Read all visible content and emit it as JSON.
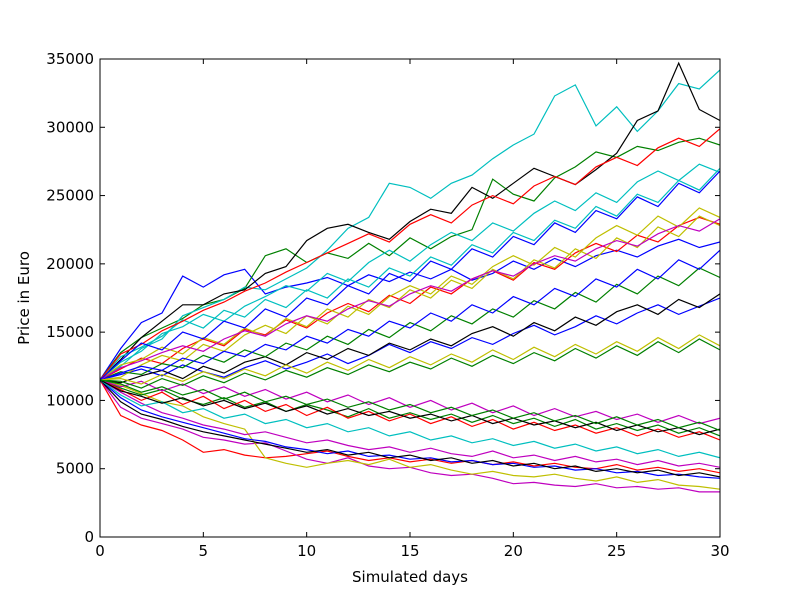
{
  "chart_data": {
    "type": "line",
    "title": "",
    "xlabel": "Simulated days",
    "ylabel": "Price in Euro",
    "xlim": [
      0,
      30
    ],
    "ylim": [
      0,
      35000
    ],
    "x_ticks": [
      0,
      5,
      10,
      15,
      20,
      25,
      30
    ],
    "y_ticks": [
      0,
      5000,
      10000,
      15000,
      20000,
      25000,
      30000,
      35000
    ],
    "x_tick_labels": [
      "0",
      "5",
      "10",
      "15",
      "20",
      "25",
      "30"
    ],
    "y_tick_labels": [
      "0",
      "5000",
      "10000",
      "15000",
      "20000",
      "25000",
      "30000",
      "35000"
    ],
    "grid": false,
    "legend": "none",
    "colors": [
      "#0000ff",
      "#008000",
      "#ff0000",
      "#00bfbf",
      "#bf00bf",
      "#bfbf00",
      "#000000"
    ],
    "x": [
      0,
      1,
      2,
      3,
      4,
      5,
      6,
      7,
      8,
      9,
      10,
      11,
      12,
      13,
      14,
      15,
      16,
      17,
      18,
      19,
      20,
      21,
      22,
      23,
      24,
      25,
      26,
      27,
      28,
      29,
      30
    ],
    "start_value": 11500,
    "series": [
      {
        "values": [
          11500,
          13800,
          15700,
          16400,
          19100,
          18300,
          19200,
          19600,
          17800,
          18300,
          18600,
          19000,
          18400,
          19200,
          18700,
          19400,
          18900,
          19600,
          18800,
          19300,
          20200,
          19600,
          20400,
          19800,
          20600,
          21000,
          20500,
          21300,
          21800,
          21200,
          21600
        ]
      },
      {
        "values": [
          11500,
          13500,
          14600,
          15300,
          16000,
          17000,
          17400,
          18200,
          20600,
          21100,
          20100,
          20800,
          20400,
          21500,
          20600,
          21900,
          21100,
          22000,
          22500,
          26200,
          25100,
          24600,
          26300,
          27100,
          28200,
          27800,
          28600,
          28300,
          28900,
          29200,
          28700
        ]
      },
      {
        "values": [
          11500,
          8900,
          8200,
          7800,
          7100,
          6200,
          6400,
          6000,
          5800,
          5900,
          6100,
          6300,
          5900,
          5600,
          5800,
          5500,
          5700,
          5400,
          5600,
          5300,
          5500,
          5200,
          5400,
          5100,
          5000,
          5300,
          4900,
          5100,
          4800,
          5000,
          4700
        ]
      },
      {
        "values": [
          11500,
          12500,
          13800,
          14500,
          16200,
          16800,
          17400,
          18300,
          18100,
          18900,
          19700,
          21000,
          22600,
          23400,
          25900,
          25600,
          24800,
          25900,
          26500,
          27700,
          28700,
          29500,
          32300,
          33100,
          30100,
          31500,
          29700,
          31200,
          33200,
          32800,
          34200
        ]
      },
      {
        "values": [
          11500,
          9500,
          8700,
          8300,
          7900,
          7300,
          7100,
          6800,
          6900,
          6300,
          5700,
          5400,
          5800,
          5200,
          5000,
          5100,
          4700,
          4500,
          4600,
          4300,
          3900,
          4000,
          3800,
          3700,
          3900,
          3600,
          3700,
          3500,
          3600,
          3300,
          3300
        ]
      },
      {
        "values": [
          11500,
          11100,
          10500,
          9900,
          9600,
          8800,
          8300,
          7900,
          5800,
          5400,
          5100,
          5400,
          5600,
          5300,
          5700,
          5100,
          5300,
          4900,
          4600,
          4800,
          4500,
          4400,
          4600,
          4300,
          4100,
          4400,
          4000,
          4200,
          3800,
          3700,
          3500
        ]
      },
      {
        "values": [
          11500,
          13000,
          14600,
          15800,
          17000,
          17000,
          17800,
          18100,
          19300,
          19800,
          21700,
          22600,
          22900,
          22300,
          21800,
          23100,
          24000,
          23700,
          25600,
          24800,
          25900,
          27000,
          26400,
          25800,
          26900,
          28100,
          30500,
          31200,
          34700,
          31300,
          30500
        ]
      },
      {
        "values": [
          11500,
          11900,
          12300,
          11800,
          12600,
          12100,
          11700,
          12400,
          12900,
          12300,
          12800,
          13400,
          12700,
          13300,
          14100,
          13500,
          14300,
          13800,
          14600,
          14100,
          14900,
          15500,
          14800,
          15400,
          16200,
          15600,
          16400,
          17000,
          16300,
          16900,
          17500
        ]
      },
      {
        "values": [
          11500,
          10900,
          10400,
          10800,
          10100,
          9700,
          10200,
          9500,
          9900,
          9200,
          9700,
          9300,
          8800,
          9400,
          8700,
          9100,
          8600,
          9000,
          8400,
          8900,
          8300,
          8700,
          8100,
          8600,
          7900,
          8300,
          7800,
          8200,
          7600,
          8000,
          7400
        ]
      },
      {
        "values": [
          11500,
          12300,
          13100,
          12700,
          13800,
          14500,
          14000,
          15200,
          14800,
          15900,
          15300,
          16400,
          17100,
          16500,
          17700,
          17100,
          18300,
          17800,
          18900,
          19500,
          18800,
          20100,
          19600,
          20800,
          21500,
          20900,
          22100,
          21600,
          22800,
          23400,
          22900
        ]
      },
      {
        "values": [
          11500,
          12800,
          13600,
          14900,
          15400,
          16300,
          15800,
          16900,
          17600,
          18400,
          18000,
          19300,
          18700,
          20100,
          21000,
          20200,
          21400,
          22300,
          21700,
          23000,
          22400,
          23700,
          24600,
          23900,
          25200,
          24500,
          26000,
          26800,
          26100,
          27300,
          26700
        ]
      },
      {
        "values": [
          11500,
          10600,
          9800,
          9100,
          8700,
          8200,
          7900,
          7500,
          7700,
          7300,
          6900,
          7100,
          6700,
          6400,
          6600,
          6200,
          6500,
          6100,
          5900,
          6300,
          5800,
          6000,
          5600,
          5900,
          5500,
          5700,
          5300,
          5600,
          5200,
          5400,
          5100
        ]
      },
      {
        "values": [
          11500,
          11700,
          12600,
          13300,
          12900,
          14100,
          13600,
          14800,
          15500,
          14900,
          16200,
          15600,
          16900,
          16300,
          17600,
          18400,
          17800,
          19100,
          18500,
          19800,
          20600,
          19900,
          21200,
          20500,
          21900,
          22800,
          22100,
          23500,
          22700,
          24100,
          23400
        ]
      },
      {
        "values": [
          11500,
          11300,
          11800,
          12200,
          11600,
          12500,
          12000,
          12800,
          13200,
          12600,
          13500,
          13000,
          13800,
          13300,
          14200,
          13700,
          14500,
          14000,
          14900,
          15400,
          14700,
          15700,
          15100,
          16100,
          15500,
          16500,
          17000,
          16300,
          17400,
          16800,
          17800
        ]
      },
      {
        "values": [
          11500,
          10200,
          9300,
          8800,
          8400,
          8000,
          7600,
          7200,
          7000,
          6600,
          6400,
          6100,
          6300,
          5900,
          6000,
          5700,
          5800,
          5500,
          5600,
          5300,
          5400,
          5100,
          5200,
          4900,
          5000,
          4700,
          4800,
          4500,
          4600,
          4400,
          4300
        ]
      },
      {
        "values": [
          11500,
          12100,
          11900,
          12700,
          12400,
          13300,
          12800,
          13700,
          13200,
          14200,
          13700,
          14700,
          14100,
          15200,
          14600,
          15700,
          15100,
          16200,
          15600,
          16700,
          16100,
          17300,
          16700,
          17900,
          17200,
          18500,
          17800,
          19100,
          18400,
          19700,
          19000
        ]
      },
      {
        "values": [
          11500,
          10800,
          10000,
          10600,
          9700,
          10300,
          9400,
          10000,
          9200,
          9700,
          8900,
          9500,
          8700,
          9200,
          8500,
          9000,
          8300,
          8800,
          8100,
          8600,
          7900,
          8400,
          7800,
          8200,
          7600,
          8000,
          7400,
          7900,
          7300,
          7700,
          7100
        ]
      },
      {
        "values": [
          11500,
          13200,
          13900,
          14700,
          15900,
          15300,
          16600,
          16100,
          17400,
          16800,
          18100,
          17500,
          18900,
          18300,
          19700,
          19100,
          20500,
          19900,
          21400,
          20800,
          22300,
          21700,
          23200,
          22600,
          24200,
          23500,
          25100,
          24500,
          26100,
          25400,
          27000
        ]
      },
      {
        "values": [
          11500,
          11000,
          11400,
          10700,
          11200,
          10500,
          11000,
          10300,
          10800,
          10100,
          10600,
          9900,
          10400,
          9700,
          10200,
          9500,
          10000,
          9300,
          9800,
          9100,
          9600,
          8900,
          9400,
          8800,
          9200,
          8600,
          9000,
          8400,
          8900,
          8300,
          8700
        ]
      },
      {
        "values": [
          11500,
          12600,
          13000,
          13900,
          13400,
          14600,
          14100,
          15300,
          14700,
          16000,
          15400,
          16700,
          16100,
          17400,
          16800,
          18100,
          17500,
          18800,
          18200,
          19600,
          18900,
          20300,
          19700,
          21100,
          20400,
          21900,
          21200,
          22700,
          22000,
          23500,
          22800
        ]
      },
      {
        "values": [
          11500,
          9900,
          9000,
          8600,
          8100,
          7700,
          7400,
          7100,
          6800,
          6500,
          6200,
          6400,
          6000,
          6200,
          5800,
          6000,
          5600,
          5800,
          5400,
          5600,
          5200,
          5400,
          5000,
          5200,
          4800,
          5000,
          4700,
          4900,
          4500,
          4700,
          4400
        ]
      },
      {
        "values": [
          11500,
          12000,
          12500,
          12200,
          13100,
          12700,
          13600,
          13200,
          14100,
          13700,
          14700,
          14200,
          15200,
          14700,
          15800,
          15300,
          16400,
          15800,
          17000,
          16400,
          17600,
          17000,
          18200,
          17600,
          18900,
          18300,
          19600,
          18900,
          20300,
          19600,
          21000
        ]
      },
      {
        "values": [
          11500,
          11400,
          10900,
          11600,
          11100,
          11800,
          11300,
          12000,
          11500,
          12200,
          11700,
          12400,
          11900,
          12600,
          12100,
          12800,
          12300,
          13100,
          12500,
          13300,
          12700,
          13500,
          12900,
          13800,
          13100,
          14000,
          13300,
          14300,
          13500,
          14500,
          13700
        ]
      },
      {
        "values": [
          11500,
          13400,
          14100,
          15100,
          15800,
          16600,
          17200,
          18000,
          18600,
          19400,
          20100,
          20800,
          21500,
          22200,
          21600,
          22900,
          23600,
          23000,
          24300,
          25000,
          24400,
          25700,
          26400,
          25800,
          27100,
          27800,
          27200,
          28500,
          29200,
          28600,
          29900
        ]
      },
      {
        "values": [
          11500,
          10400,
          9600,
          9900,
          9100,
          9400,
          8700,
          9000,
          8300,
          8600,
          8000,
          8300,
          7700,
          8000,
          7400,
          7700,
          7100,
          7400,
          6900,
          7200,
          6700,
          7000,
          6500,
          6800,
          6300,
          6600,
          6100,
          6400,
          5900,
          6200,
          5800
        ]
      },
      {
        "values": [
          11500,
          12400,
          12900,
          13500,
          14000,
          13600,
          14500,
          15100,
          14700,
          15600,
          16200,
          15800,
          16700,
          17300,
          16900,
          17800,
          18400,
          18000,
          18900,
          19500,
          19100,
          20000,
          20600,
          20200,
          21100,
          21700,
          21300,
          22200,
          22800,
          22400,
          23300
        ]
      },
      {
        "values": [
          11500,
          11600,
          11200,
          11900,
          11400,
          12100,
          11600,
          12300,
          11800,
          12600,
          12000,
          12800,
          12200,
          13000,
          12400,
          13200,
          12600,
          13400,
          12800,
          13700,
          13000,
          13900,
          13200,
          14100,
          13400,
          14300,
          13600,
          14600,
          13800,
          14800,
          14000
        ]
      },
      {
        "values": [
          11500,
          10700,
          10300,
          9800,
          10200,
          9600,
          10000,
          9400,
          9800,
          9200,
          9600,
          9000,
          9400,
          8900,
          9200,
          8700,
          9000,
          8500,
          8900,
          8300,
          8700,
          8200,
          8500,
          8000,
          8400,
          7800,
          8200,
          7700,
          8000,
          7500,
          7900
        ]
      },
      {
        "values": [
          11500,
          12900,
          14200,
          13700,
          15000,
          14500,
          15800,
          15300,
          16700,
          16100,
          17500,
          17000,
          18400,
          17800,
          19300,
          18700,
          20200,
          19600,
          21100,
          20500,
          22000,
          21400,
          23000,
          22300,
          23900,
          23300,
          24900,
          24200,
          25900,
          25200,
          26800
        ]
      },
      {
        "values": [
          11500,
          11200,
          10600,
          11000,
          10400,
          10800,
          10100,
          10600,
          9900,
          10300,
          9700,
          10100,
          9500,
          9900,
          9300,
          9700,
          9100,
          9500,
          8900,
          9300,
          8700,
          9100,
          8500,
          8900,
          8300,
          8800,
          8200,
          8600,
          8000,
          8400,
          7800
        ]
      }
    ]
  }
}
